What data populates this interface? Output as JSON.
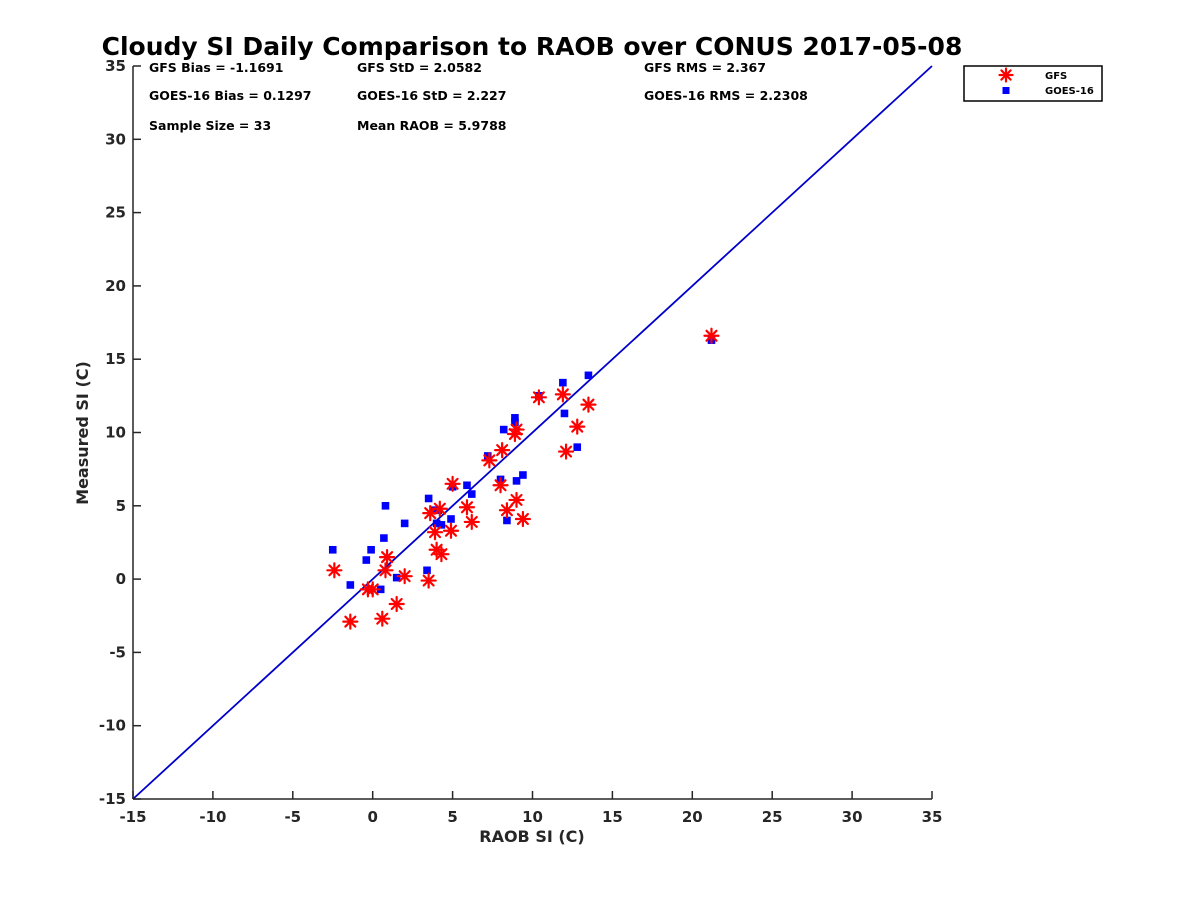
{
  "chart_data": {
    "type": "scatter",
    "title": "Cloudy SI Daily Comparison to RAOB over CONUS 2017-05-08",
    "xlabel": "RAOB SI (C)",
    "ylabel": "Measured SI (C)",
    "xlim": [
      -15,
      35
    ],
    "ylim": [
      -15,
      35
    ],
    "xticks": [
      "-15",
      "-10",
      "-5",
      "0",
      "5",
      "10",
      "15",
      "20",
      "25",
      "30",
      "35"
    ],
    "yticks": [
      "-15",
      "-10",
      "-5",
      "0",
      "5",
      "10",
      "15",
      "20",
      "25",
      "30",
      "35"
    ],
    "grid": false,
    "legend_position": "top-right",
    "reference_line": {
      "type": "one-to-one",
      "color": "#0000cc"
    },
    "stats": [
      [
        "GFS Bias = -1.1691",
        "GFS StD = 2.0582",
        "GFS RMS = 2.367"
      ],
      [
        "GOES-16 Bias = 0.1297",
        "GOES-16 StD = 2.227",
        "GOES-16 RMS = 2.2308"
      ],
      [
        "Sample Size = 33",
        "Mean RAOB = 5.9788"
      ]
    ],
    "series": [
      {
        "name": "GFS",
        "marker": "asterisk",
        "color": "#ff0000",
        "points": [
          [
            -2.4,
            0.6
          ],
          [
            -1.4,
            -2.9
          ],
          [
            -0.3,
            -0.7
          ],
          [
            0.0,
            -0.7
          ],
          [
            0.6,
            -2.7
          ],
          [
            0.8,
            0.6
          ],
          [
            0.9,
            1.5
          ],
          [
            1.5,
            -1.7
          ],
          [
            2.0,
            0.2
          ],
          [
            3.5,
            -0.1
          ],
          [
            3.6,
            4.5
          ],
          [
            3.9,
            3.2
          ],
          [
            4.0,
            2.0
          ],
          [
            4.2,
            4.8
          ],
          [
            4.3,
            1.7
          ],
          [
            4.9,
            3.3
          ],
          [
            5.0,
            6.5
          ],
          [
            5.9,
            4.9
          ],
          [
            6.2,
            3.9
          ],
          [
            7.3,
            8.1
          ],
          [
            8.0,
            6.4
          ],
          [
            8.1,
            8.8
          ],
          [
            8.4,
            4.7
          ],
          [
            8.9,
            9.9
          ],
          [
            9.0,
            10.2
          ],
          [
            9.0,
            5.4
          ],
          [
            9.4,
            4.1
          ],
          [
            10.4,
            12.4
          ],
          [
            11.9,
            12.6
          ],
          [
            12.1,
            8.7
          ],
          [
            12.8,
            10.4
          ],
          [
            13.5,
            11.9
          ],
          [
            21.2,
            16.6
          ]
        ]
      },
      {
        "name": "GOES-16",
        "marker": "square",
        "color": "#0000ff",
        "points": [
          [
            -2.5,
            2.0
          ],
          [
            -1.4,
            -0.4
          ],
          [
            -0.4,
            1.3
          ],
          [
            -0.1,
            2.0
          ],
          [
            0.5,
            -0.7
          ],
          [
            0.7,
            2.8
          ],
          [
            0.8,
            5.0
          ],
          [
            1.5,
            0.1
          ],
          [
            2.0,
            3.8
          ],
          [
            3.4,
            0.6
          ],
          [
            3.5,
            5.5
          ],
          [
            3.8,
            4.7
          ],
          [
            4.0,
            3.8
          ],
          [
            4.1,
            4.7
          ],
          [
            4.3,
            3.7
          ],
          [
            4.9,
            4.1
          ],
          [
            5.0,
            6.3
          ],
          [
            5.9,
            6.4
          ],
          [
            6.2,
            5.8
          ],
          [
            7.2,
            8.4
          ],
          [
            8.0,
            6.8
          ],
          [
            8.2,
            10.2
          ],
          [
            8.4,
            4.0
          ],
          [
            8.9,
            10.7
          ],
          [
            8.9,
            11.0
          ],
          [
            9.0,
            6.7
          ],
          [
            9.4,
            7.1
          ],
          [
            10.4,
            12.5
          ],
          [
            11.9,
            13.4
          ],
          [
            12.0,
            11.3
          ],
          [
            12.8,
            9.0
          ],
          [
            13.5,
            13.9
          ],
          [
            21.2,
            16.3
          ]
        ]
      }
    ]
  }
}
